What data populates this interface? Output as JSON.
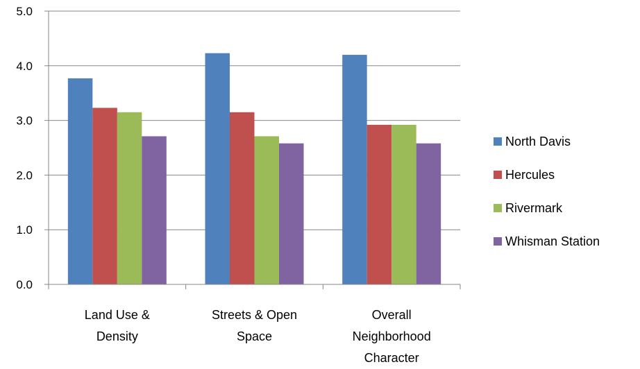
{
  "chart_data": {
    "type": "bar",
    "categories": [
      [
        "Land Use &",
        "Density"
      ],
      [
        "Streets & Open",
        "Space"
      ],
      [
        "Overall",
        "Neighborhood",
        "Character"
      ]
    ],
    "series": [
      {
        "name": "North Davis",
        "color": "#4F81BD",
        "values": [
          3.77,
          4.23,
          4.2
        ]
      },
      {
        "name": "Hercules",
        "color": "#C0504D",
        "values": [
          3.23,
          3.15,
          2.92
        ]
      },
      {
        "name": "Rivermark",
        "color": "#9BBB59",
        "values": [
          3.15,
          2.71,
          2.92
        ]
      },
      {
        "name": "Whisman Station",
        "color": "#8064A2",
        "values": [
          2.71,
          2.58,
          2.58
        ]
      }
    ],
    "ylim": [
      0,
      5
    ],
    "yticks": [
      "0.0",
      "1.0",
      "2.0",
      "3.0",
      "4.0",
      "5.0"
    ],
    "grid": true,
    "legend": "right"
  }
}
